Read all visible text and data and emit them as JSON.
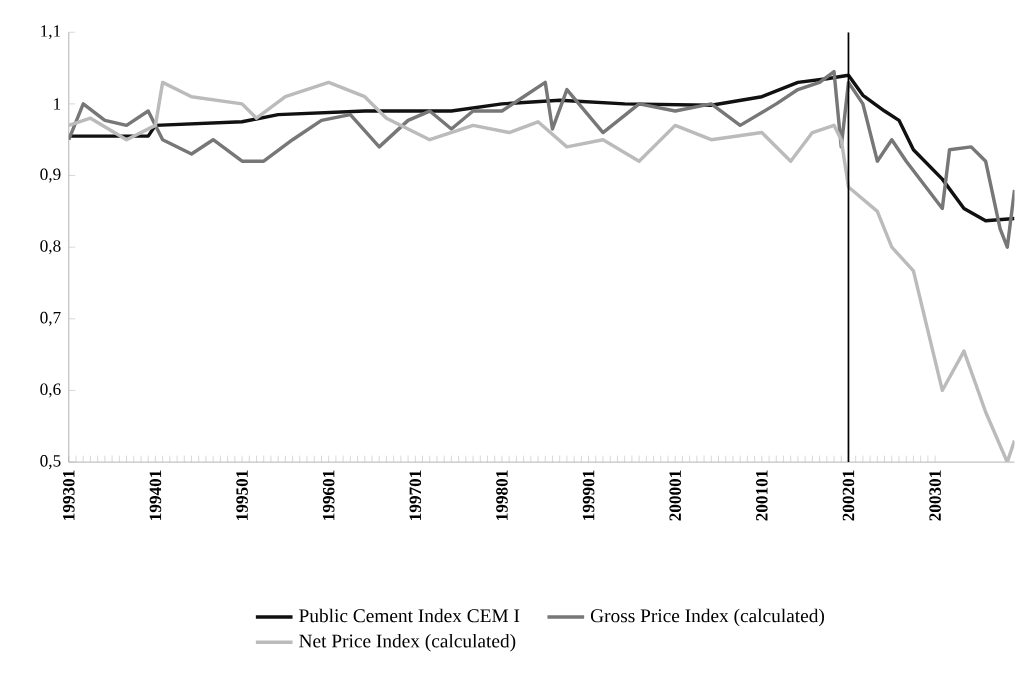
{
  "chart_data": {
    "type": "line",
    "ylim": [
      0.5,
      1.1
    ],
    "yticks": [
      {
        "value": 0.5,
        "label": "0,5"
      },
      {
        "value": 0.6,
        "label": "0,6"
      },
      {
        "value": 0.7,
        "label": "0,7"
      },
      {
        "value": 0.8,
        "label": "0,8"
      },
      {
        "value": 0.9,
        "label": "0,9"
      },
      {
        "value": 1,
        "label": "1"
      },
      {
        "value": 1.1,
        "label": "1,1"
      }
    ],
    "xlim": [
      "1993-01",
      "2003-12"
    ],
    "xticks": [
      {
        "value": "1993-01",
        "label": "199301"
      },
      {
        "value": "1994-01",
        "label": "199401"
      },
      {
        "value": "1995-01",
        "label": "199501"
      },
      {
        "value": "1996-01",
        "label": "199601"
      },
      {
        "value": "1997-01",
        "label": "199701"
      },
      {
        "value": "1998-01",
        "label": "199801"
      },
      {
        "value": "1999-01",
        "label": "199901"
      },
      {
        "value": "2000-01",
        "label": "200001"
      },
      {
        "value": "2001-01",
        "label": "200101"
      },
      {
        "value": "2002-01",
        "label": "200201"
      },
      {
        "value": "2003-01",
        "label": "200301"
      }
    ],
    "grid": false,
    "legend": "bottom",
    "marker": "none",
    "line_style": "solid",
    "ref_lines": [
      {
        "axis": "x",
        "value": "2002-01",
        "color": "#000000"
      }
    ],
    "series": [
      {
        "name": "Public Cement Index CEM I",
        "color": "#111111",
        "x": [
          "1993-01",
          "1993-12",
          "1994-01",
          "1995-01",
          "1995-06",
          "1996-06",
          "1997-06",
          "1998-01",
          "1998-09",
          "1999-06",
          "2000-06",
          "2001-01",
          "2001-06",
          "2001-10",
          "2002-01",
          "2002-03",
          "2002-06",
          "2002-08",
          "2002-10",
          "2003-02",
          "2003-05",
          "2003-08",
          "2003-12"
        ],
        "values": [
          0.955,
          0.955,
          0.97,
          0.975,
          0.985,
          0.99,
          0.99,
          1.0,
          1.005,
          1.0,
          0.998,
          1.01,
          1.03,
          1.035,
          1.04,
          1.012,
          0.99,
          0.977,
          0.936,
          0.895,
          0.854,
          0.837,
          0.84
        ]
      },
      {
        "name": "Gross Price Index (calculated)",
        "color": "#777777",
        "x": [
          "1993-01",
          "1993-03",
          "1993-06",
          "1993-09",
          "1993-12",
          "1994-02",
          "1994-06",
          "1994-09",
          "1995-01",
          "1995-04",
          "1995-08",
          "1995-12",
          "1996-04",
          "1996-08",
          "1996-12",
          "1997-03",
          "1997-06",
          "1997-09",
          "1998-01",
          "1998-04",
          "1998-07",
          "1998-08",
          "1998-10",
          "1999-03",
          "1999-08",
          "2000-01",
          "2000-06",
          "2000-10",
          "2001-03",
          "2001-06",
          "2001-09",
          "2001-11",
          "2001-12",
          "2002-01",
          "2002-03",
          "2002-05",
          "2002-07",
          "2002-09",
          "2003-02",
          "2003-03",
          "2003-06",
          "2003-08",
          "2003-10",
          "2003-11",
          "2003-12"
        ],
        "values": [
          0.95,
          1.0,
          0.977,
          0.97,
          0.99,
          0.95,
          0.93,
          0.95,
          0.92,
          0.92,
          0.95,
          0.977,
          0.985,
          0.94,
          0.977,
          0.99,
          0.965,
          0.99,
          0.99,
          1.01,
          1.03,
          0.965,
          1.02,
          0.96,
          1.0,
          0.99,
          1.0,
          0.97,
          1.0,
          1.02,
          1.03,
          1.045,
          0.94,
          1.03,
          1.0,
          0.92,
          0.95,
          0.92,
          0.854,
          0.936,
          0.94,
          0.92,
          0.826,
          0.8,
          0.88
        ]
      },
      {
        "name": "Net Price Index (calculated)",
        "color": "#bbbbbb",
        "x": [
          "1993-01",
          "1993-04",
          "1993-09",
          "1994-01",
          "1994-02",
          "1994-06",
          "1995-01",
          "1995-03",
          "1995-07",
          "1996-01",
          "1996-06",
          "1996-09",
          "1997-03",
          "1997-09",
          "1998-02",
          "1998-06",
          "1998-10",
          "1999-03",
          "1999-08",
          "2000-01",
          "2000-06",
          "2001-01",
          "2001-05",
          "2001-08",
          "2001-11",
          "2001-12",
          "2002-01",
          "2002-05",
          "2002-07",
          "2002-10",
          "2003-02",
          "2003-05",
          "2003-08",
          "2003-11",
          "2003-12"
        ],
        "values": [
          0.97,
          0.98,
          0.95,
          0.97,
          1.03,
          1.01,
          1.0,
          0.98,
          1.01,
          1.03,
          1.01,
          0.98,
          0.95,
          0.97,
          0.96,
          0.975,
          0.94,
          0.95,
          0.92,
          0.97,
          0.95,
          0.96,
          0.92,
          0.96,
          0.97,
          0.95,
          0.884,
          0.85,
          0.8,
          0.767,
          0.6,
          0.655,
          0.57,
          0.5,
          0.53
        ]
      }
    ]
  }
}
